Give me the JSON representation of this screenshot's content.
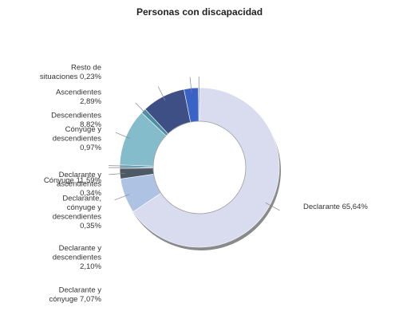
{
  "chart_data": {
    "type": "pie",
    "title": "Personas con discapacidad",
    "unit": "%",
    "slices": [
      {
        "name": "Declarante",
        "value": 65.64,
        "color": "#d8dcee",
        "label_lines": [
          "Declarante 65,64%"
        ]
      },
      {
        "name": "Declarante y cónyuge",
        "value": 7.07,
        "color": "#aec3e4",
        "label_lines": [
          "Declarante y",
          "cónyuge 7,07%"
        ]
      },
      {
        "name": "Declarante y descendientes",
        "value": 2.1,
        "color": "#4d5966",
        "label_lines": [
          "Declarante y",
          "descendientes",
          "2,10%"
        ]
      },
      {
        "name": "Declarante, cónyuge y descendientes",
        "value": 0.35,
        "color": "#6e7d8c",
        "label_lines": [
          "Declarante,",
          "cónyuge y",
          "descendientes",
          "0,35%"
        ]
      },
      {
        "name": "Declarante y ascendientes",
        "value": 0.34,
        "color": "#2a8ba6",
        "label_lines": [
          "Declarante y",
          "ascendientes",
          "0,34%"
        ]
      },
      {
        "name": "Cónyuge",
        "value": 11.59,
        "color": "#85bccb",
        "label_lines": [
          "Cónyuge 11,59%"
        ]
      },
      {
        "name": "Cónyuge y descendientes",
        "value": 0.97,
        "color": "#4c8fa0",
        "label_lines": [
          "Cónyuge y",
          "descendientes",
          "0,97%"
        ]
      },
      {
        "name": "Descendientes",
        "value": 8.82,
        "color": "#3e4f86",
        "label_lines": [
          "Descendientes",
          "8,82%"
        ]
      },
      {
        "name": "Ascendientes",
        "value": 2.89,
        "color": "#3a63c8",
        "label_lines": [
          "Ascendientes",
          "2,89%"
        ]
      },
      {
        "name": "Resto de situaciones",
        "value": 0.23,
        "color": "#7e8ea0",
        "label_lines": [
          "Resto de",
          "situaciones 0,23%"
        ]
      }
    ]
  }
}
